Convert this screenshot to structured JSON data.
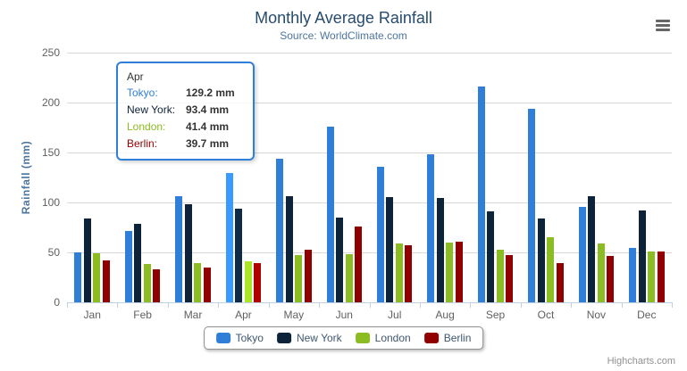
{
  "chart_data": {
    "type": "bar",
    "title": "Monthly Average Rainfall",
    "subtitle": "Source: WorldClimate.com",
    "xlabel": "",
    "ylabel": "Rainfall (mm)",
    "ylim": [
      0,
      250
    ],
    "yticks": [
      0,
      50,
      100,
      150,
      200,
      250
    ],
    "grid": true,
    "legend_position": "bottom-center",
    "categories": [
      "Jan",
      "Feb",
      "Mar",
      "Apr",
      "May",
      "Jun",
      "Jul",
      "Aug",
      "Sep",
      "Oct",
      "Nov",
      "Dec"
    ],
    "series": [
      {
        "name": "Tokyo",
        "color": "#2f7ed8",
        "values": [
          49.9,
          71.5,
          106.4,
          129.2,
          144.0,
          176.0,
          135.6,
          148.5,
          216.4,
          194.1,
          95.6,
          54.4
        ]
      },
      {
        "name": "New York",
        "color": "#0d233a",
        "values": [
          83.6,
          78.8,
          98.5,
          93.4,
          106.0,
          84.5,
          105.0,
          104.3,
          91.2,
          83.5,
          106.6,
          92.3
        ]
      },
      {
        "name": "London",
        "color": "#8bbc21",
        "values": [
          48.9,
          38.8,
          39.3,
          41.4,
          47.0,
          48.3,
          59.0,
          59.6,
          52.4,
          65.2,
          59.3,
          51.2
        ]
      },
      {
        "name": "Berlin",
        "color": "#910000",
        "values": [
          42.4,
          33.2,
          34.5,
          39.7,
          52.6,
          75.5,
          57.4,
          60.4,
          47.6,
          39.1,
          46.8,
          51.1
        ]
      }
    ],
    "hover_category": "Apr",
    "axis_colors": {
      "grid": "#d8d8d8",
      "axis_line": "#c0d0e0",
      "labels": "#606060"
    }
  },
  "tooltip": {
    "category": "Apr",
    "rows": [
      {
        "name": "Tokyo:",
        "color": "#2f7ed8",
        "value": "129.2 mm"
      },
      {
        "name": "New York:",
        "color": "#0d233a",
        "value": "93.4 mm"
      },
      {
        "name": "London:",
        "color": "#8bbc21",
        "value": "41.4 mm"
      },
      {
        "name": "Berlin:",
        "color": "#910000",
        "value": "39.7 mm"
      }
    ]
  },
  "export_menu": {
    "icon": "hamburger-menu-icon"
  },
  "credits": "Highcharts.com"
}
